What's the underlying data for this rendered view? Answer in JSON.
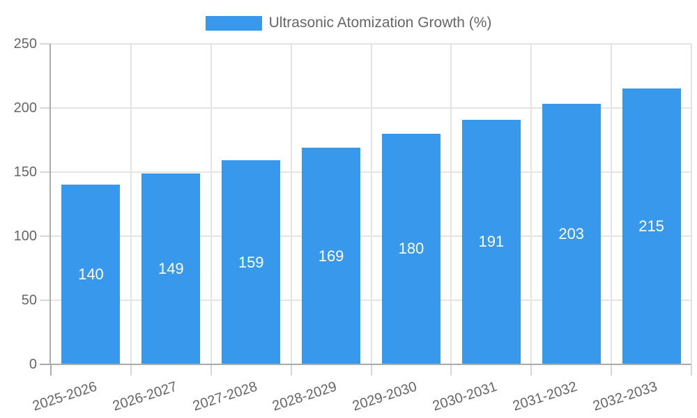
{
  "chart_data": {
    "type": "bar",
    "title": "",
    "legend_label": "Ultrasonic Atomization Growth (%)",
    "categories": [
      "2025-2026",
      "2026-2027",
      "2027-2028",
      "2028-2029",
      "2029-2030",
      "2030-2031",
      "2031-2032",
      "2032-2033"
    ],
    "values": [
      140,
      149,
      159,
      169,
      180,
      191,
      203,
      215
    ],
    "xlabel": "",
    "ylabel": "",
    "ylim": [
      0,
      250
    ],
    "yticks": [
      0,
      50,
      100,
      150,
      200,
      250
    ],
    "grid": true,
    "legend_position": "top-center",
    "value_labels": "inside-center",
    "x_label_rotation_deg": -18
  },
  "colors": {
    "bar": "#3899EC",
    "axis_line": "#ABABAB",
    "gridline": "#E4E4E4",
    "tick_mark": "#D6D6D6",
    "axis_text": "#666666",
    "value_label_text": "#FFFFFF",
    "background": "#FFFFFF"
  }
}
